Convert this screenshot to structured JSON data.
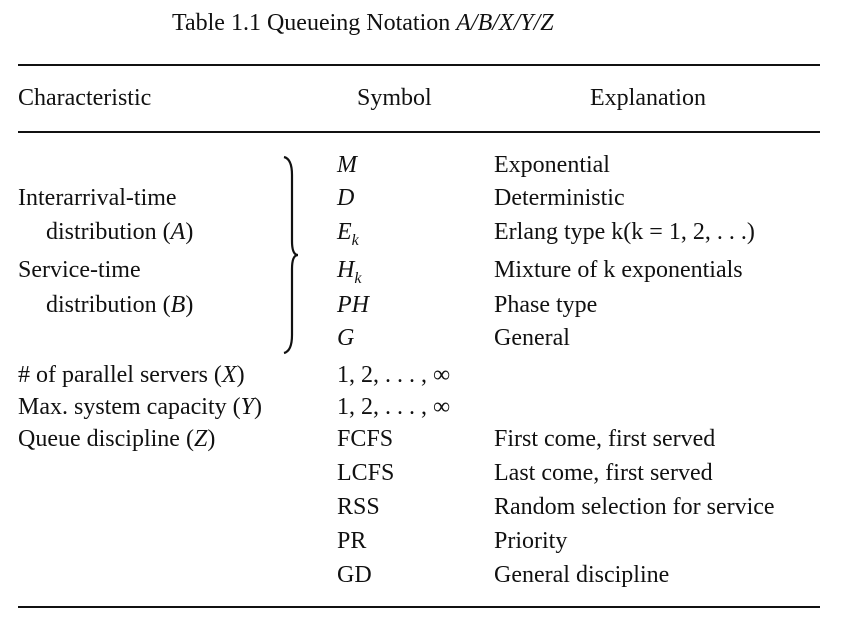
{
  "caption": {
    "prefix": "Table 1.1 Queueing Notation ",
    "notation": "A/B/X/Y/Z"
  },
  "headers": {
    "characteristic": "Characteristic",
    "symbol": "Symbol",
    "explanation": "Explanation"
  },
  "group_labels": {
    "interarrival_line1": "Interarrival-time",
    "interarrival_line2": "distribution (",
    "interarrival_var": "A",
    "service_line1": "Service-time",
    "service_line2": "distribution (",
    "service_var": "B",
    "close_paren": ")"
  },
  "distribution_rows": [
    {
      "symbol": "M",
      "sub": "",
      "explanation": "Exponential"
    },
    {
      "symbol": "D",
      "sub": "",
      "explanation": "Deterministic"
    },
    {
      "symbol": "E",
      "sub": "k",
      "explanation": "Erlang type k(k = 1, 2, . . .)"
    },
    {
      "symbol": "H",
      "sub": "k",
      "explanation": "Mixture of k exponentials"
    },
    {
      "symbol": "PH",
      "sub": "",
      "explanation": "Phase type"
    },
    {
      "symbol": "G",
      "sub": "",
      "explanation": "General"
    }
  ],
  "servers_row": {
    "label": "# of parallel servers (",
    "var": "X",
    "close": ")",
    "symbol": "1, 2, . . . , ∞"
  },
  "capacity_row": {
    "label": "Max. system capacity (",
    "var": "Y",
    "close": ")",
    "symbol": "1, 2, . . . , ∞"
  },
  "discipline_row": {
    "label": "Queue discipline (",
    "var": "Z",
    "close": ")"
  },
  "discipline_rows": [
    {
      "symbol": "FCFS",
      "explanation": "First come, first served"
    },
    {
      "symbol": "LCFS",
      "explanation": "Last come, first served"
    },
    {
      "symbol": "RSS",
      "explanation": "Random selection for service"
    },
    {
      "symbol": "PR",
      "explanation": "Priority"
    },
    {
      "symbol": "GD",
      "explanation": "General discipline"
    }
  ]
}
